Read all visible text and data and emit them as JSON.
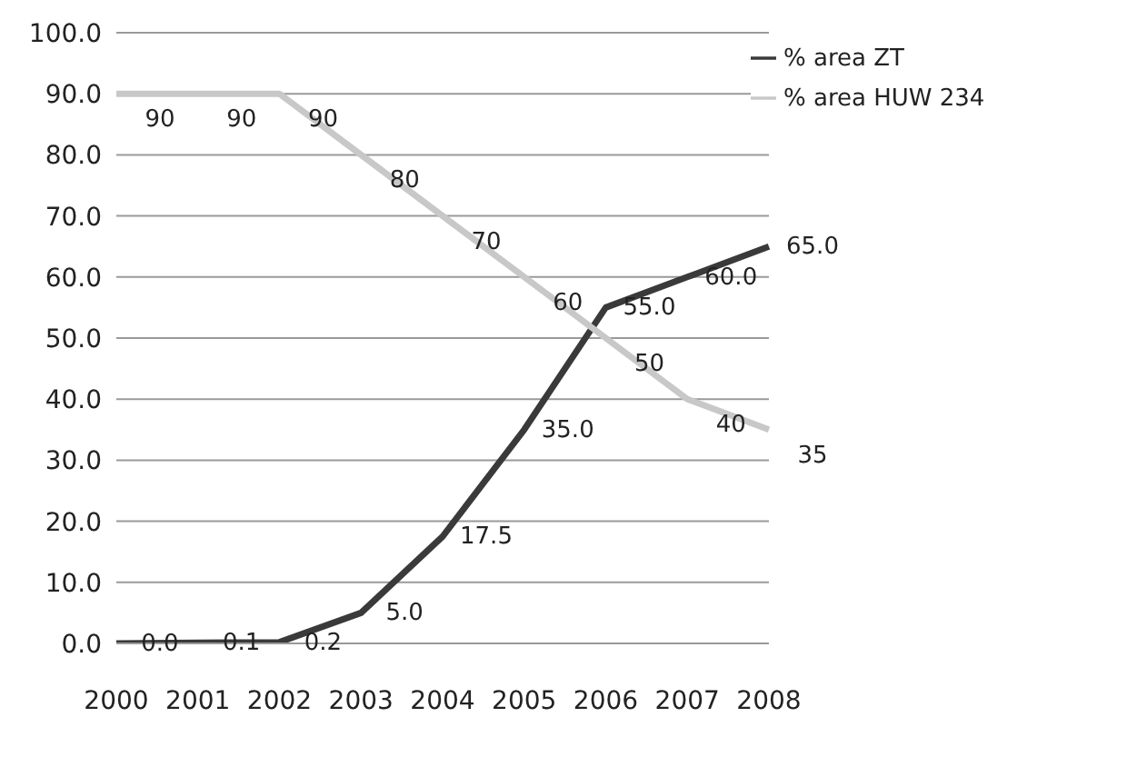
{
  "chart_data": {
    "type": "line",
    "categories": [
      "2000",
      "2001",
      "2002",
      "2003",
      "2004",
      "2005",
      "2006",
      "2007",
      "2008"
    ],
    "series": [
      {
        "name": "% area ZT",
        "color": "#3a3a3a",
        "values": [
          0.0,
          0.1,
          0.2,
          5.0,
          17.5,
          35.0,
          55.0,
          60.0,
          65.0
        ],
        "value_labels": [
          "0.0",
          "0.1",
          "0.2",
          "5.0",
          "17.5",
          "35.0",
          "55.0",
          "60.0",
          "65.0"
        ]
      },
      {
        "name": "% area HUW 234",
        "color": "#c8c8c8",
        "values": [
          90,
          90,
          90,
          80,
          70,
          60,
          50,
          40,
          35
        ],
        "value_labels": [
          "90",
          "90",
          "90",
          "80",
          "70",
          "60",
          "50",
          "40",
          "35"
        ]
      }
    ],
    "ylim": [
      0,
      100
    ],
    "yticks": [
      {
        "value": 0,
        "label": "0.0"
      },
      {
        "value": 10,
        "label": "10.0"
      },
      {
        "value": 20,
        "label": "20.0"
      },
      {
        "value": 30,
        "label": "30.0"
      },
      {
        "value": 40,
        "label": "40.0"
      },
      {
        "value": 50,
        "label": "50.0"
      },
      {
        "value": 60,
        "label": "60.0"
      },
      {
        "value": 70,
        "label": "70.0"
      },
      {
        "value": 80,
        "label": "80.0"
      },
      {
        "value": 90,
        "label": "90.0"
      },
      {
        "value": 100,
        "label": "100.0"
      }
    ],
    "grid": "y",
    "legend": "top right",
    "marker": "none",
    "line_style": "solid"
  }
}
